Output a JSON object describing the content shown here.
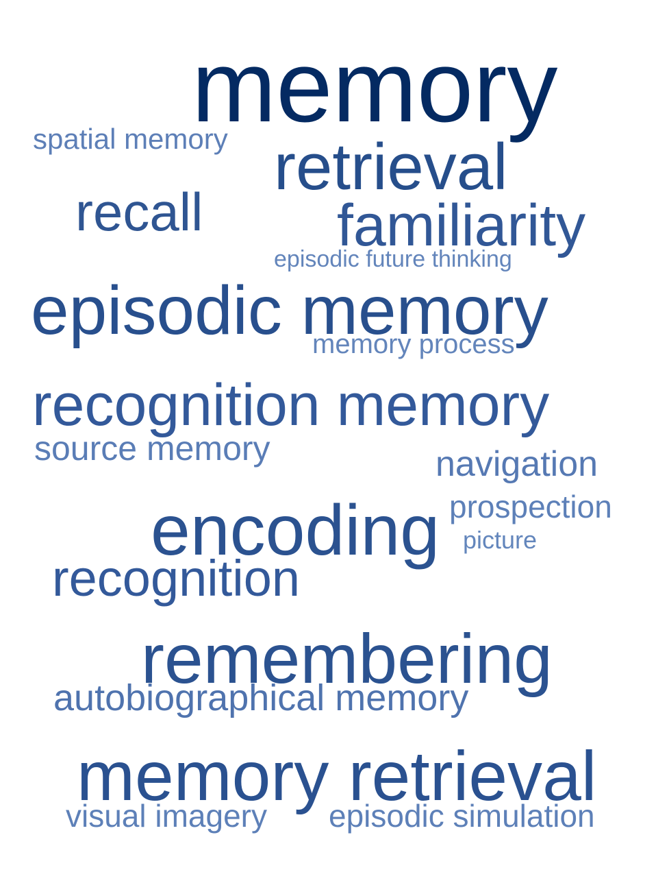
{
  "words": [
    {
      "id": "memory",
      "text": "memory",
      "color": "#042a62"
    },
    {
      "id": "spatial-memory",
      "text": "spatial memory",
      "color": "#5d7fb7"
    },
    {
      "id": "retrieval",
      "text": "retrieval",
      "color": "#264e8b"
    },
    {
      "id": "recall",
      "text": "recall",
      "color": "#2f5592"
    },
    {
      "id": "familiarity",
      "text": "familiarity",
      "color": "#315796"
    },
    {
      "id": "episodic-future-thinking",
      "text": "episodic future thinking",
      "color": "#6385bb"
    },
    {
      "id": "episodic-memory",
      "text": "episodic memory",
      "color": "#284f8d"
    },
    {
      "id": "memory-process",
      "text": "memory process",
      "color": "#6385bb"
    },
    {
      "id": "recognition-memory",
      "text": "recognition memory",
      "color": "#33599a"
    },
    {
      "id": "source-memory",
      "text": "source memory",
      "color": "#5a7db6"
    },
    {
      "id": "navigation",
      "text": "navigation",
      "color": "#5679b3"
    },
    {
      "id": "prospection",
      "text": "prospection",
      "color": "#5d80b8"
    },
    {
      "id": "encoding",
      "text": "encoding",
      "color": "#2b5290"
    },
    {
      "id": "picture",
      "text": "picture",
      "color": "#6386bc"
    },
    {
      "id": "recognition",
      "text": "recognition",
      "color": "#33599a"
    },
    {
      "id": "remembering",
      "text": "remembering",
      "color": "#2b5290"
    },
    {
      "id": "autobiographical-memory",
      "text": "autobiographical memory",
      "color": "#4f73ae"
    },
    {
      "id": "memory-retrieval",
      "text": "memory retrieval",
      "color": "#2a5190"
    },
    {
      "id": "visual-imagery",
      "text": "visual imagery",
      "color": "#5d80b8"
    },
    {
      "id": "episodic-simulation",
      "text": "episodic simulation",
      "color": "#5d80b8"
    }
  ]
}
